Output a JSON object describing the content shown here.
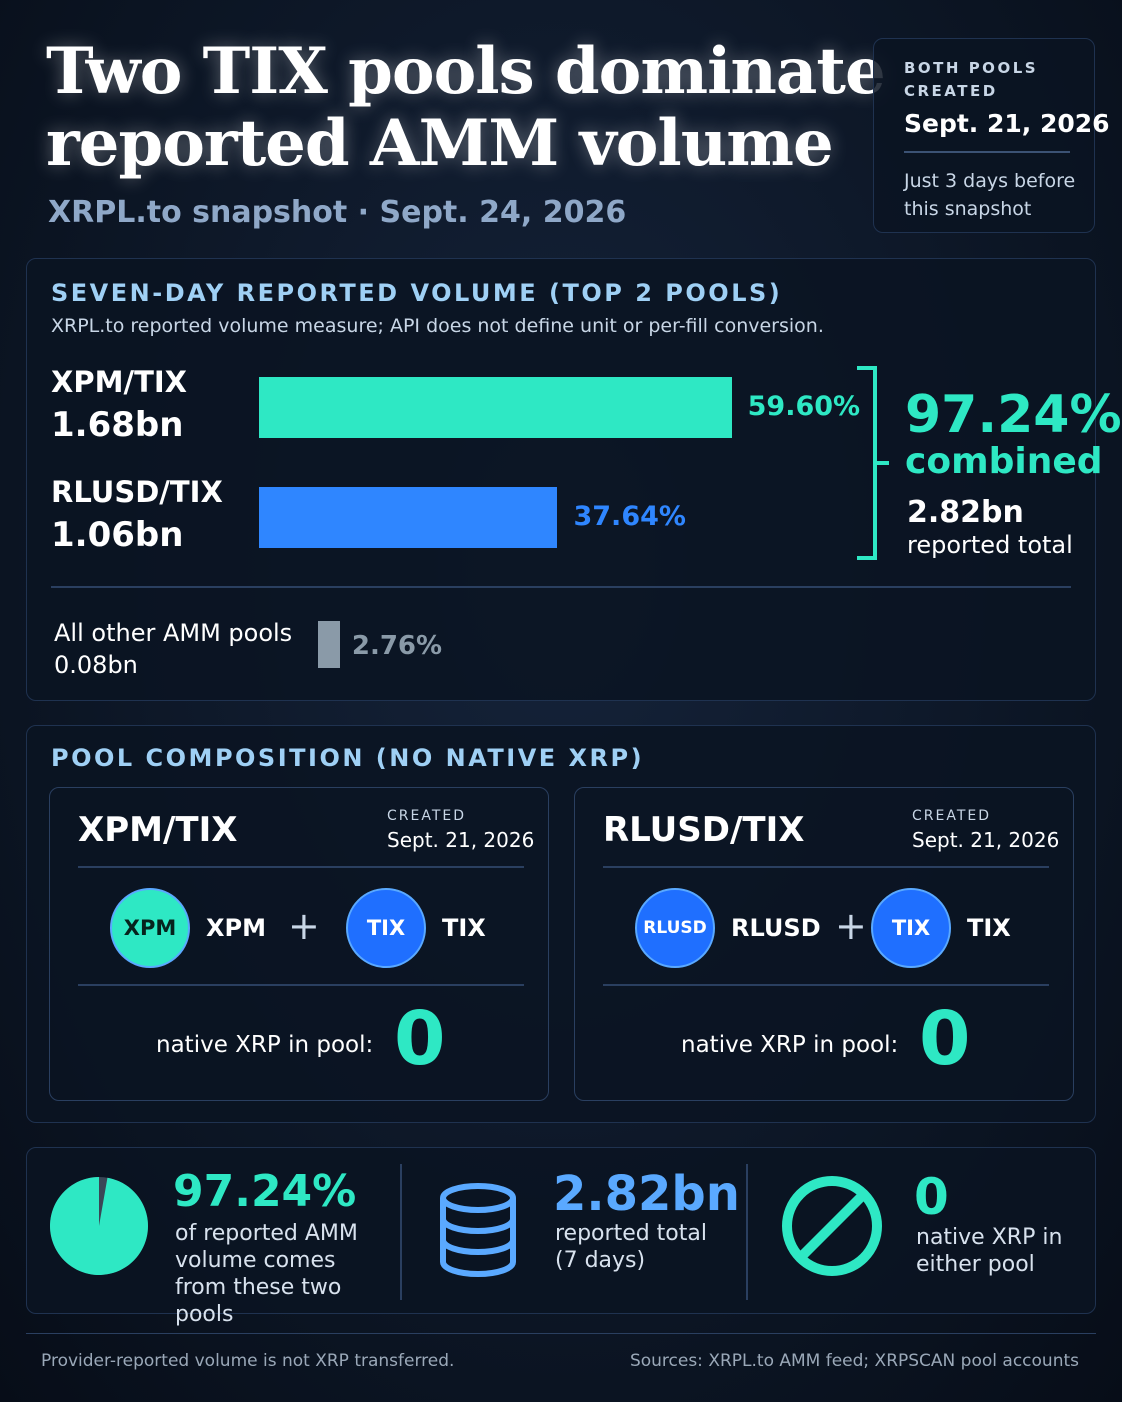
{
  "header": {
    "title_lines": [
      "Two TIX pools dominate",
      "reported AMM volume"
    ],
    "subtitle": "XRPL.to snapshot · Sept. 24, 2026"
  },
  "callout": {
    "label_lines": [
      "BOTH POOLS",
      "CREATED"
    ],
    "date": "Sept. 21, 2026",
    "note_lines": [
      "Just 3 days before",
      "this snapshot"
    ]
  },
  "volume": {
    "heading": "SEVEN-DAY REPORTED VOLUME (TOP 2 POOLS)",
    "note": "XRPL.to reported volume measure; API does not define unit or per-fill conversion.",
    "pools": [
      {
        "name": "XPM/TIX",
        "volume": "1.68bn",
        "share": 59.6,
        "share_label": "59.60%",
        "color": "#2ee8c4"
      },
      {
        "name": "RLUSD/TIX",
        "volume": "1.06bn",
        "share": 37.64,
        "share_label": "37.64%",
        "color": "#2f86ff"
      }
    ],
    "combined": {
      "share_label": "97.24%",
      "word": "combined",
      "total": "2.82bn",
      "total_label": "reported total"
    },
    "other": {
      "name": "All other AMM pools",
      "volume": "0.08bn",
      "share": 2.76,
      "share_label": "2.76%",
      "color": "#8a9aa8"
    }
  },
  "composition": {
    "heading": "POOL COMPOSITION (NO NATIVE XRP)",
    "cards": [
      {
        "name": "XPM/TIX",
        "created_label": "CREATED",
        "created": "Sept. 21, 2026",
        "tokens": [
          {
            "badge": "XPM",
            "name": "XPM",
            "color": "#2ee8c4"
          },
          {
            "badge": "TIX",
            "name": "TIX",
            "color": "#1f6fff"
          }
        ],
        "join": "+",
        "native_label": "native XRP in pool:",
        "native_value": "0"
      },
      {
        "name": "RLUSD/TIX",
        "created_label": "CREATED",
        "created": "Sept. 21, 2026",
        "tokens": [
          {
            "badge": "RLUSD",
            "name": "RLUSD",
            "color": "#1f6fff"
          },
          {
            "badge": "TIX",
            "name": "TIX",
            "color": "#1f6fff"
          }
        ],
        "join": "+",
        "native_label": "native XRP in pool:",
        "native_value": "0"
      }
    ]
  },
  "stats": [
    {
      "value": "97.24%",
      "share": 97.24,
      "text": "of reported AMM volume comes from these two pools"
    },
    {
      "value": "2.82bn",
      "text": "reported total (7 days)"
    },
    {
      "value": "0",
      "text": "native XRP in either pool"
    }
  ],
  "footer": {
    "left": "Provider-reported volume is not XRP transferred.",
    "right": "Sources: XRPL.to AMM feed; XRPSCAN pool accounts"
  }
}
